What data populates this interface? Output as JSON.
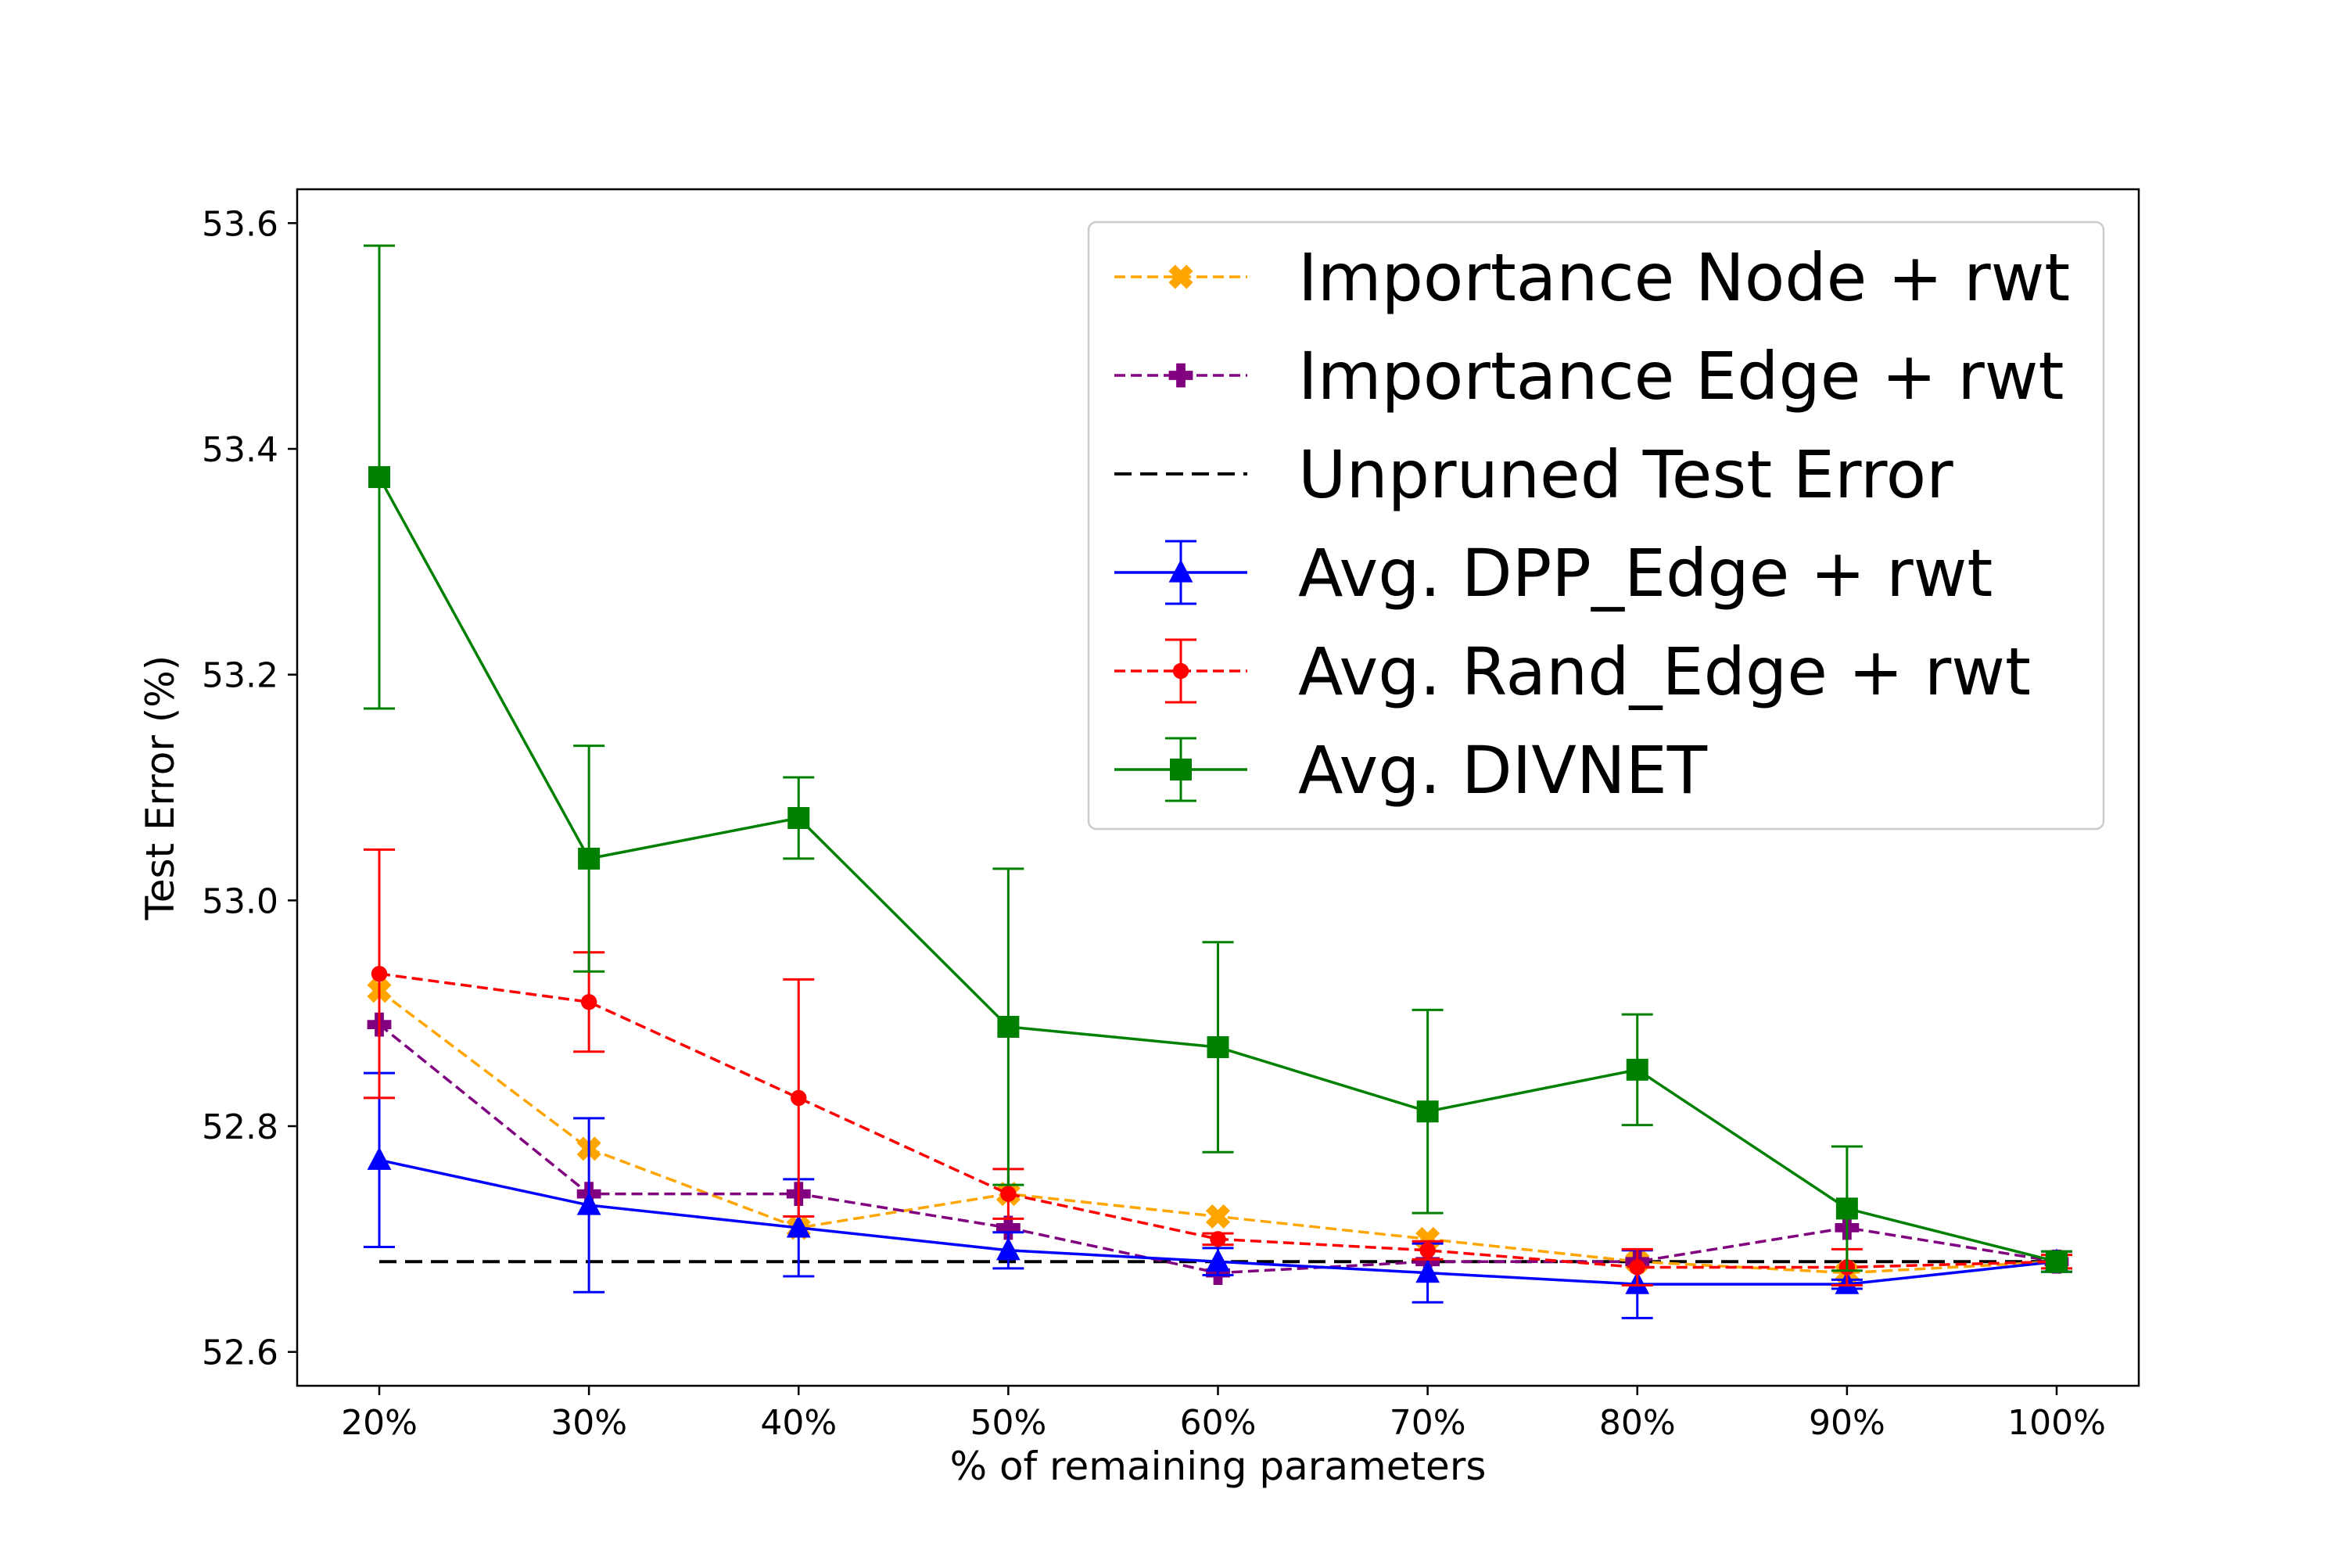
{
  "chart_data": {
    "type": "line",
    "title": "",
    "xlabel": "% of remaining parameters",
    "ylabel": "Test Error (%)",
    "categories": [
      "20%",
      "30%",
      "40%",
      "50%",
      "60%",
      "70%",
      "80%",
      "90%",
      "100%"
    ],
    "ylim": [
      52.57,
      53.63
    ],
    "yticks": [
      52.6,
      52.8,
      53.0,
      53.2,
      53.4,
      53.6
    ],
    "ytick_labels": [
      "52.6",
      "52.8",
      "53.0",
      "53.2",
      "53.4",
      "53.6"
    ],
    "grid": false,
    "legend_position": "top-right",
    "reference_line": {
      "name": "Unpruned Test Error",
      "value": 52.68,
      "color": "#000000",
      "dash": "dashed"
    },
    "series": [
      {
        "name": "Importance Node + rwt",
        "color": "#ffa500",
        "dash": "dashed",
        "marker": "x",
        "values": [
          52.92,
          52.78,
          52.71,
          52.74,
          52.72,
          52.7,
          52.68,
          52.67,
          52.68
        ]
      },
      {
        "name": "Importance Edge + rwt",
        "color": "#800080",
        "dash": "dashed",
        "marker": "plus",
        "values": [
          52.89,
          52.74,
          52.74,
          52.71,
          52.67,
          52.68,
          52.68,
          52.71,
          52.68
        ]
      },
      {
        "name": "Avg. DPP_Edge + rwt",
        "color": "#0000ff",
        "dash": "solid",
        "marker": "triangle",
        "values": [
          52.77,
          52.73,
          52.71,
          52.69,
          52.68,
          52.67,
          52.66,
          52.66,
          52.68
        ],
        "errors": [
          0.077,
          0.077,
          0.043,
          0.016,
          0.012,
          0.026,
          0.03,
          0.004,
          0.009
        ]
      },
      {
        "name": "Avg. Rand_Edge + rwt",
        "color": "#ff0000",
        "dash": "dashed",
        "marker": "circle",
        "values": [
          52.935,
          52.91,
          52.825,
          52.74,
          52.7,
          52.69,
          52.675,
          52.675,
          52.68
        ],
        "errors": [
          0.11,
          0.044,
          0.105,
          0.022,
          0.005,
          0.008,
          0.016,
          0.016,
          0.006
        ]
      },
      {
        "name": "Avg. DIVNET",
        "color": "#008000",
        "dash": "solid",
        "marker": "square",
        "values": [
          53.375,
          53.037,
          53.073,
          52.888,
          52.87,
          52.813,
          52.85,
          52.727,
          52.68
        ],
        "errors": [
          0.205,
          0.1,
          0.036,
          0.14,
          0.093,
          0.09,
          0.049,
          0.055,
          0.009
        ]
      }
    ],
    "legend_order": [
      "Importance Node + rwt",
      "Importance Edge + rwt",
      "Unpruned Test Error",
      "Avg. DPP_Edge + rwt",
      "Avg. Rand_Edge + rwt",
      "Avg. DIVNET"
    ]
  }
}
